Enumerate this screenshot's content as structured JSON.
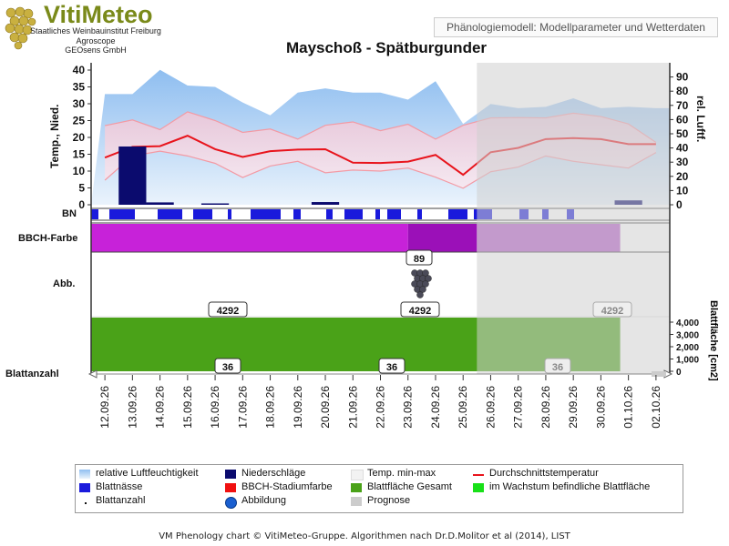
{
  "header": {
    "logo_text": "VitiMeteo",
    "sub1": "Staatliches Weinbauinstitut Freiburg",
    "sub2": "Agroscope",
    "sub3": "GEOsens GmbH",
    "link_text": "Phänologiemodell: Modellparameter und Wetterdaten"
  },
  "footer": "VM Phenology chart © VitiMeteo-Gruppe. Algorithmen nach Dr.D.Molitor et al (2014), LIST",
  "legend": [
    {
      "label": "relative Luftfeuchtigkeit",
      "color": "#a9cdf0"
    },
    {
      "label": "Niederschläge",
      "color": "#0b0b6e"
    },
    {
      "label": "Temp. min-max",
      "color": "#f2f2f2"
    },
    {
      "label": "Durchschnittstemperatur",
      "color": "#e8141c"
    },
    {
      "label": "Blattnässe",
      "color": "#1a1adc"
    },
    {
      "label": "BBCH-Stadiumfarbe",
      "color": "#f01010"
    },
    {
      "label": "Blattfläche Gesamt",
      "color": "#4aa218"
    },
    {
      "label": "im Wachstum befindliche Blattfläche",
      "color": "#18e018"
    },
    {
      "label": "Blattanzahl",
      "color": "#111111"
    },
    {
      "label": "Abbildung",
      "color": "#1a5fd0"
    },
    {
      "label": "Prognose",
      "color": "#cccccc"
    }
  ],
  "chart_data": {
    "type": "line",
    "title": "Mayschoß - Spätburgunder",
    "x": [
      "12.09.26",
      "13.09.26",
      "14.09.26",
      "15.09.26",
      "16.09.26",
      "17.09.26",
      "18.09.26",
      "19.09.26",
      "20.09.26",
      "21.09.26",
      "22.09.26",
      "23.09.26",
      "24.09.26",
      "25.09.26",
      "26.09.26",
      "27.09.26",
      "28.09.26",
      "29.09.26",
      "30.09.26",
      "01.10.26",
      "02.10.26"
    ],
    "ylabel_left": "Temp., Nied.",
    "ylabel_right": "rel. Luftf.",
    "ylim_left": [
      0,
      40
    ],
    "ylim_right": [
      0,
      100
    ],
    "yticks_left": [
      0,
      5,
      10,
      15,
      20,
      25,
      30,
      35,
      40
    ],
    "yticks_right": [
      0,
      10,
      20,
      30,
      40,
      50,
      60,
      70,
      80,
      90
    ],
    "series": [
      {
        "name": "relative Luftfeuchtigkeit",
        "axis": "right",
        "x": [
          0,
          1,
          2,
          3,
          4,
          5,
          6,
          7,
          8,
          9,
          10,
          11,
          12,
          13,
          14,
          15,
          16,
          17,
          18,
          19,
          20
        ],
        "values": [
          78,
          78,
          95,
          84,
          83,
          72,
          63,
          79,
          82,
          79,
          79,
          74,
          87,
          57,
          71,
          68,
          69,
          75,
          68,
          69,
          68
        ]
      },
      {
        "name": "Temp. max",
        "axis": "left",
        "x": [
          0,
          1,
          2,
          3,
          4,
          5,
          6,
          7,
          8,
          9,
          10,
          11,
          12,
          13,
          14,
          15,
          16,
          17,
          18,
          19,
          20
        ],
        "values": [
          23.5,
          25.2,
          22.3,
          27.6,
          25.0,
          21.5,
          22.5,
          19.5,
          23.6,
          24.6,
          22.0,
          23.9,
          19.5,
          23.6,
          25.8,
          25.9,
          25.8,
          27.2,
          26.2,
          24.0,
          18.5
        ]
      },
      {
        "name": "Temp. min",
        "axis": "left",
        "x": [
          0,
          1,
          2,
          3,
          4,
          5,
          6,
          7,
          8,
          9,
          10,
          11,
          12,
          13,
          14,
          15,
          16,
          17,
          18,
          19,
          20
        ],
        "values": [
          7.3,
          14.5,
          15.9,
          14.5,
          12.3,
          8.1,
          11.5,
          12.9,
          9.5,
          10.3,
          10.0,
          10.9,
          8.2,
          4.9,
          9.8,
          11.2,
          14.5,
          12.9,
          11.9,
          10.9,
          15.5
        ]
      },
      {
        "name": "Durchschnittstemperatur",
        "axis": "left",
        "x": [
          0,
          1,
          2,
          3,
          4,
          5,
          6,
          7,
          8,
          9,
          10,
          11,
          12,
          13,
          14,
          15,
          16,
          17,
          18,
          19,
          20
        ],
        "values": [
          14.0,
          17.2,
          17.4,
          20.5,
          16.5,
          14.2,
          15.9,
          16.4,
          16.5,
          12.5,
          12.4,
          12.8,
          14.8,
          8.9,
          15.6,
          16.9,
          19.5,
          19.8,
          19.5,
          18.0,
          18.0
        ]
      },
      {
        "name": "Niederschläge",
        "axis": "left",
        "type": "bar",
        "x": [
          1,
          2,
          4,
          8,
          19
        ],
        "values": [
          17.3,
          0.7,
          0.4,
          0.8,
          1.3
        ]
      }
    ],
    "bbch": {
      "label": "BBCH-Farbe",
      "segments": [
        {
          "from": 0,
          "to": 11.5,
          "color": "#c722d9"
        },
        {
          "from": 11.5,
          "to": 14.0,
          "color": "#9b10b8"
        },
        {
          "from": 14.0,
          "to": 19.2,
          "color": "#b45ac8"
        }
      ]
    },
    "abbildung": {
      "label": "Abb.",
      "value": "89"
    },
    "blattflaeche": {
      "label": "Blattfläche [cm2]",
      "values_label": [
        "4292",
        "4292",
        "4292"
      ],
      "yticks": [
        "0",
        "1,000",
        "2,000",
        "3,000",
        "4,000"
      ]
    },
    "blattanzahl": {
      "label": "Blattanzahl",
      "values_label": [
        "36",
        "36",
        "36"
      ]
    },
    "bn_label": "BN",
    "prognose_from": 14.0
  }
}
